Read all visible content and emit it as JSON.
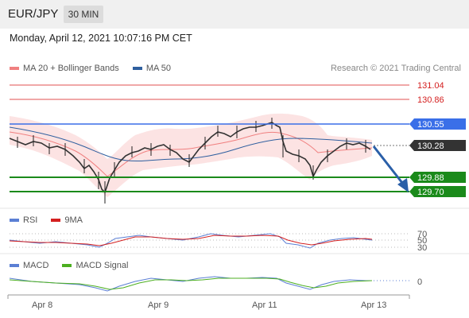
{
  "header": {
    "pair": "EUR/JPY",
    "timeframe": "30 MIN"
  },
  "datetime": "Monday, April 12, 2021 10:07:16 PM CET",
  "legend_main": [
    {
      "label": "MA 20 + Bollinger Bands",
      "color": "#f08080"
    },
    {
      "label": "MA 50",
      "color": "#2f5f9f"
    }
  ],
  "credit": "Research © 2021 Trading Central",
  "legend_rsi": [
    {
      "label": "RSI",
      "color": "#5b7fd4"
    },
    {
      "label": "9MA",
      "color": "#d42020"
    }
  ],
  "legend_macd": [
    {
      "label": "MACD",
      "color": "#5b7fd4"
    },
    {
      "label": "MACD Signal",
      "color": "#4caf20"
    }
  ],
  "colors": {
    "resistance": "#e05050",
    "pivot": "#3a6fe8",
    "support": "#1a8a1a",
    "current": "#333333",
    "arrow": "#2a5fa8"
  },
  "levels": {
    "r2": "131.04",
    "r1": "130.86",
    "pivot": "130.55",
    "current": "130.28",
    "s1": "129.88",
    "s2": "129.70"
  },
  "rsi_levels": [
    "70",
    "50",
    "30"
  ],
  "macd_level": "0",
  "x_axis": [
    "Apr 8",
    "Apr 9",
    "Apr 11",
    "Apr 13"
  ],
  "chart_data": {
    "type": "candlestick",
    "title": "EUR/JPY 30 MIN",
    "xlabel": "",
    "ylabel": "",
    "x_ticks": [
      "Apr 8",
      "Apr 9",
      "Apr 11",
      "Apr 13"
    ],
    "ylim": [
      129.55,
      131.15
    ],
    "series": [
      {
        "name": "MA 20 + Bollinger Bands"
      },
      {
        "name": "MA 50"
      }
    ],
    "close_path": [
      130.34,
      130.31,
      130.25,
      130.3,
      130.26,
      130.2,
      130.21,
      130.12,
      129.93,
      129.95,
      129.82,
      129.7,
      129.8,
      130.02,
      130.1,
      130.15,
      130.18,
      130.22,
      130.24,
      130.19,
      130.25,
      130.21,
      130.15,
      130.16,
      130.25,
      130.35,
      130.42,
      130.38,
      130.46,
      130.5,
      130.49,
      130.5,
      130.55,
      130.5,
      130.35,
      130.25,
      130.2,
      130.15,
      130.02,
      129.95,
      130.1,
      130.18,
      130.25,
      130.3,
      130.32,
      130.28,
      130.26
    ],
    "levels": [
      {
        "label": "131.04",
        "value": 131.04
      },
      {
        "label": "130.86",
        "value": 130.86
      },
      {
        "label": "130.55",
        "value": 130.55
      },
      {
        "label": "130.28",
        "value": 130.28
      },
      {
        "label": "129.88",
        "value": 129.88
      },
      {
        "label": "129.70",
        "value": 129.7
      }
    ],
    "rsi": {
      "levels": [
        70,
        50,
        30
      ]
    },
    "macd": {
      "levels": [
        0
      ]
    }
  }
}
